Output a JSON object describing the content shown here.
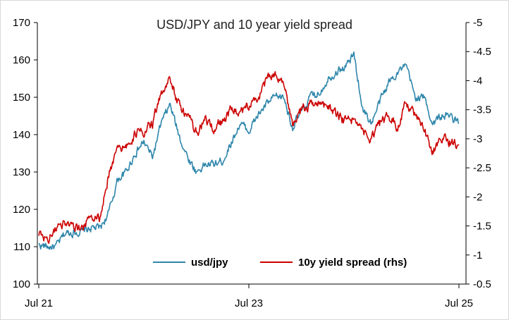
{
  "chart_data": {
    "type": "line",
    "title": "USD/JPY and 10 year yield spread",
    "x_ticks": [
      "Jul 21",
      "Jul 23",
      "Jul 25"
    ],
    "y_left": {
      "min": 100,
      "max": 170,
      "ticks": [
        "100",
        "110",
        "120",
        "130",
        "140",
        "150",
        "160",
        "170"
      ]
    },
    "y_right": {
      "min": -0.5,
      "max": -5,
      "ticks": [
        "-0.5",
        "-1",
        "-1.5",
        "-2",
        "-2.5",
        "-3",
        "-3.5",
        "-4",
        "-4.5",
        "-5"
      ]
    },
    "legend_position": "bottom-center",
    "grid": false,
    "series": [
      {
        "name": "usd/jpy",
        "axis": "left",
        "color": "#2e86ab",
        "x": [
          "2021-07",
          "2021-08",
          "2021-09",
          "2021-10",
          "2021-11",
          "2021-12",
          "2022-01",
          "2022-02",
          "2022-03",
          "2022-04",
          "2022-05",
          "2022-06",
          "2022-07",
          "2022-08",
          "2022-09",
          "2022-10",
          "2022-11",
          "2022-12",
          "2023-01",
          "2023-02",
          "2023-03",
          "2023-04",
          "2023-05",
          "2023-06",
          "2023-07",
          "2023-08",
          "2023-09",
          "2023-10",
          "2023-11",
          "2023-12",
          "2024-01",
          "2024-02",
          "2024-03",
          "2024-04",
          "2024-05",
          "2024-06",
          "2024-07",
          "2024-08",
          "2024-09",
          "2024-10",
          "2024-11",
          "2024-12",
          "2025-01",
          "2025-02",
          "2025-03",
          "2025-04",
          "2025-05",
          "2025-06",
          "2025-07"
        ],
        "values": [
          110.5,
          110.0,
          110.0,
          113.5,
          114.0,
          114.0,
          115.0,
          115.0,
          119.0,
          128.0,
          130.0,
          135.0,
          138.0,
          134.0,
          143.0,
          148.0,
          140.0,
          134.0,
          130.0,
          132.0,
          132.0,
          133.0,
          138.0,
          143.0,
          141.0,
          145.0,
          148.0,
          150.0,
          150.0,
          142.0,
          146.0,
          150.0,
          151.0,
          155.0,
          157.0,
          158.0,
          161.5,
          147.0,
          143.0,
          149.0,
          154.0,
          157.0,
          158.0,
          150.0,
          150.0,
          143.0,
          145.0,
          145.0,
          143.0
        ]
      },
      {
        "name": "10y yield spread (rhs)",
        "axis": "right",
        "color": "#cc0000",
        "x": [
          "2021-07",
          "2021-08",
          "2021-09",
          "2021-10",
          "2021-11",
          "2021-12",
          "2022-01",
          "2022-02",
          "2022-03",
          "2022-04",
          "2022-05",
          "2022-06",
          "2022-07",
          "2022-08",
          "2022-09",
          "2022-10",
          "2022-11",
          "2022-12",
          "2023-01",
          "2023-02",
          "2023-03",
          "2023-04",
          "2023-05",
          "2023-06",
          "2023-07",
          "2023-08",
          "2023-09",
          "2023-10",
          "2023-11",
          "2023-12",
          "2024-01",
          "2024-02",
          "2024-03",
          "2024-04",
          "2024-05",
          "2024-06",
          "2024-07",
          "2024-08",
          "2024-09",
          "2024-10",
          "2024-11",
          "2024-12",
          "2025-01",
          "2025-02",
          "2025-03",
          "2025-04",
          "2025-05",
          "2025-06",
          "2025-07"
        ],
        "values": [
          -1.35,
          -1.25,
          -1.45,
          -1.55,
          -1.45,
          -1.45,
          -1.7,
          -1.65,
          -2.4,
          -2.8,
          -2.85,
          -3.1,
          -3.15,
          -3.25,
          -3.8,
          -4.0,
          -3.6,
          -3.4,
          -3.1,
          -3.3,
          -3.2,
          -3.3,
          -3.5,
          -3.45,
          -3.6,
          -3.7,
          -4.0,
          -4.1,
          -3.9,
          -3.3,
          -3.5,
          -3.6,
          -3.6,
          -3.55,
          -3.4,
          -3.3,
          -3.35,
          -3.1,
          -3.0,
          -3.25,
          -3.4,
          -3.2,
          -3.6,
          -3.4,
          -3.15,
          -2.8,
          -3.0,
          -2.95,
          -2.9
        ]
      }
    ]
  }
}
